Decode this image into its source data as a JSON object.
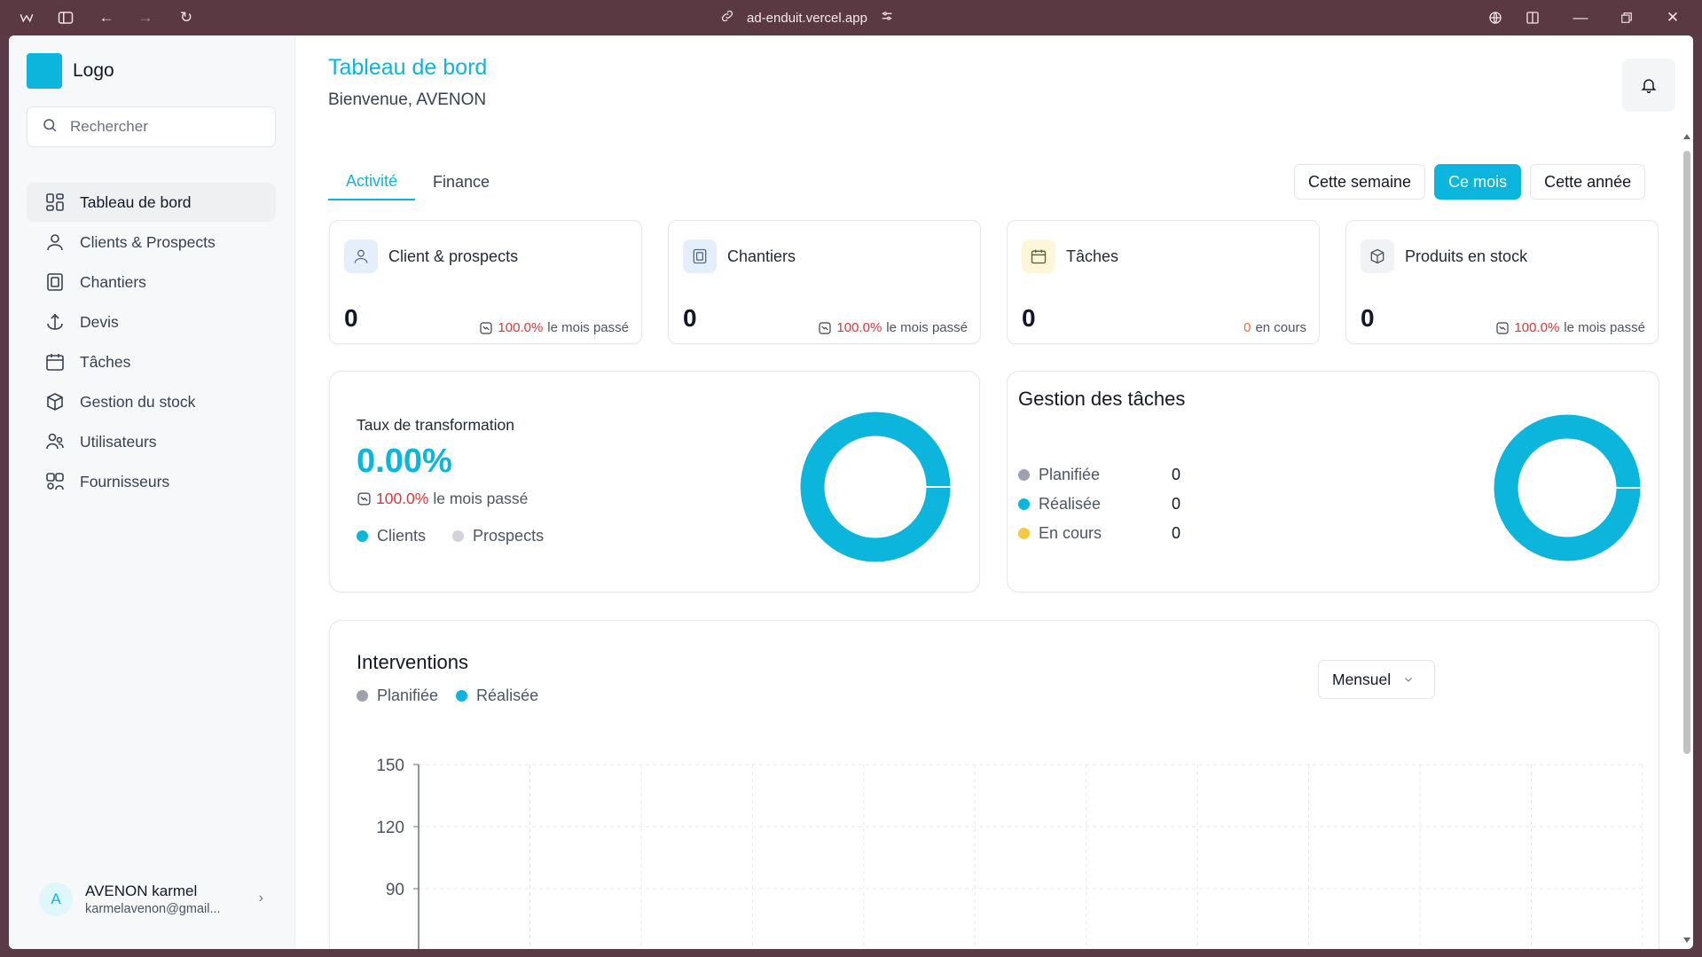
{
  "browser": {
    "url": "ad-enduit.vercel.app"
  },
  "sidebar": {
    "logo_text": "Logo",
    "search_placeholder": "Rechercher",
    "items": [
      {
        "label": "Tableau de bord",
        "icon": "dashboard-icon",
        "active": true
      },
      {
        "label": "Clients & Prospects",
        "icon": "user-icon"
      },
      {
        "label": "Chantiers",
        "icon": "building-icon"
      },
      {
        "label": "Devis",
        "icon": "anchor-icon"
      },
      {
        "label": "Tâches",
        "icon": "calendar-icon"
      },
      {
        "label": "Gestion du stock",
        "icon": "box-icon"
      },
      {
        "label": "Utilisateurs",
        "icon": "users-icon"
      },
      {
        "label": "Fournisseurs",
        "icon": "suppliers-icon"
      }
    ],
    "user": {
      "initial": "A",
      "name": "AVENON karmel",
      "email": "karmelavenon@gmail..."
    }
  },
  "header": {
    "title": "Tableau de bord",
    "subtitle": "Bienvenue, AVENON"
  },
  "tabs": [
    {
      "label": "Activité",
      "active": true
    },
    {
      "label": "Finance"
    }
  ],
  "periods": [
    {
      "label": "Cette semaine"
    },
    {
      "label": "Ce mois",
      "active": true
    },
    {
      "label": "Cette année"
    }
  ],
  "stats": [
    {
      "title": "Client & prospects",
      "value": "0",
      "trend_pct": "100.0%",
      "trend_label": "le mois passé",
      "icon": "user-icon",
      "icon_bg": "#e5effc"
    },
    {
      "title": "Chantiers",
      "value": "0",
      "trend_pct": "100.0%",
      "trend_label": "le mois passé",
      "icon": "building-icon",
      "icon_bg": "#e5effc"
    },
    {
      "title": "Tâches",
      "value": "0",
      "trend_pct": "0",
      "trend_label": "en cours",
      "icon": "calendar-icon",
      "icon_bg": "#fdf6d8"
    },
    {
      "title": "Produits en stock",
      "value": "0",
      "trend_pct": "100.0%",
      "trend_label": "le mois passé",
      "icon": "box-icon",
      "icon_bg": "#f1f2f4"
    }
  ],
  "conversion": {
    "title": "Taux de transformation",
    "value": "0.00%",
    "trend_pct": "100.0%",
    "trend_label": "le mois passé",
    "legend": [
      {
        "label": "Clients",
        "color": "#0bb5db"
      },
      {
        "label": "Prospects",
        "color": "#d1d5db"
      }
    ]
  },
  "tasks": {
    "title": "Gestion des tâches",
    "rows": [
      {
        "label": "Planifiée",
        "value": "0",
        "color": "#9ca3af"
      },
      {
        "label": "Réalisée",
        "value": "0",
        "color": "#0bb5db"
      },
      {
        "label": "En cours",
        "value": "0",
        "color": "#f5c842"
      }
    ]
  },
  "interventions": {
    "title": "Interventions",
    "select_value": "Mensuel",
    "legend": [
      {
        "label": "Planifiée",
        "color": "#9ca3af"
      },
      {
        "label": "Réalisée",
        "color": "#0bb5db"
      }
    ]
  },
  "chart_data": {
    "type": "bar",
    "ylim": [
      0,
      150
    ],
    "y_ticks": [
      "150",
      "120",
      "90"
    ],
    "series": [
      {
        "name": "Planifiée",
        "values": []
      },
      {
        "name": "Réalisée",
        "values": []
      }
    ]
  },
  "colors": {
    "accent": "#0bb5db",
    "negative": "#e0333b"
  }
}
